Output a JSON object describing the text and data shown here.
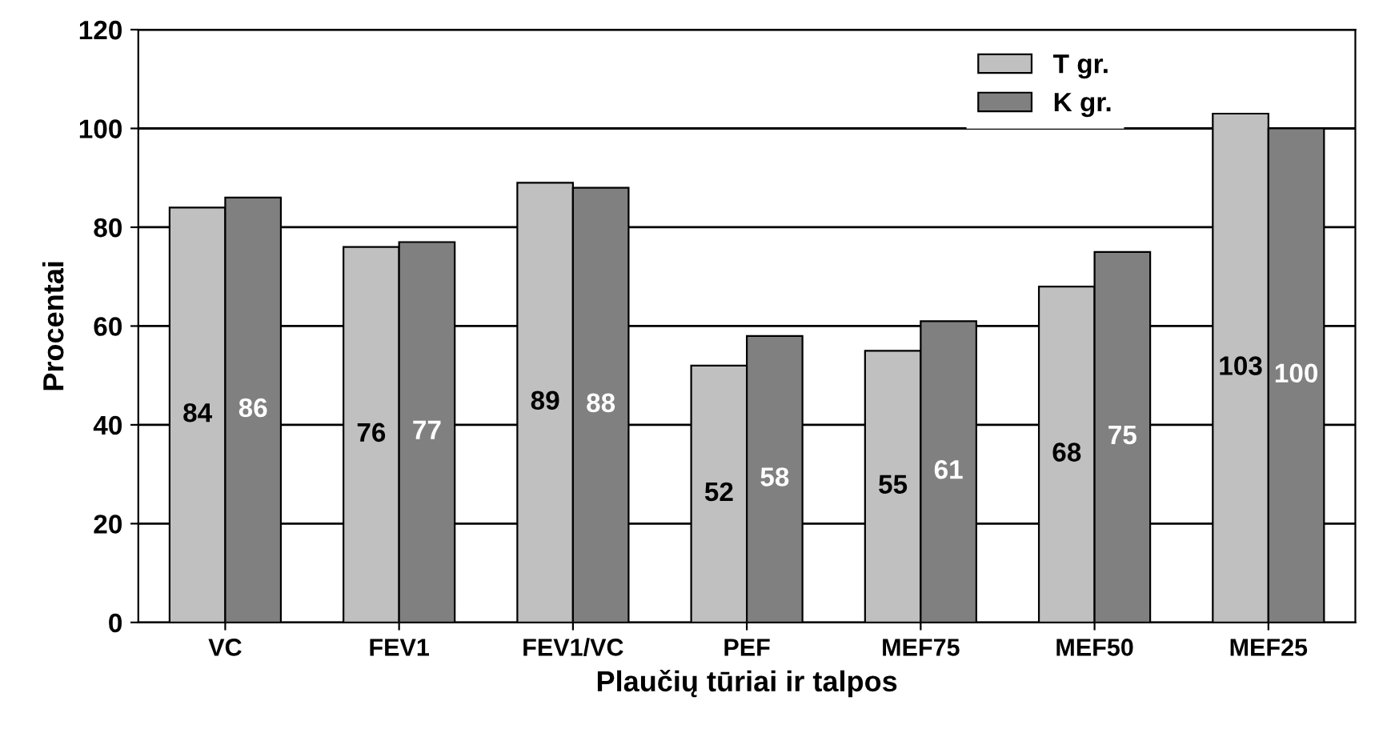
{
  "chart_data": {
    "type": "bar",
    "xlabel": "Plaučių tūriai ir talpos",
    "ylabel": "Procentai",
    "categories": [
      "VC",
      "FEV1",
      "FEV1/VC",
      "PEF",
      "MEF75",
      "MEF50",
      "MEF25"
    ],
    "series": [
      {
        "name": "T gr.",
        "color": "#c0c0c0",
        "values": [
          84,
          76,
          89,
          52,
          55,
          68,
          103
        ]
      },
      {
        "name": "K gr.",
        "color": "#808080",
        "values": [
          86,
          77,
          88,
          58,
          61,
          75,
          100
        ]
      }
    ],
    "ylim": [
      0,
      120
    ],
    "yticks": [
      0,
      20,
      40,
      60,
      80,
      100,
      120
    ],
    "grid": "y",
    "legend": "top right",
    "data_labels": true
  }
}
